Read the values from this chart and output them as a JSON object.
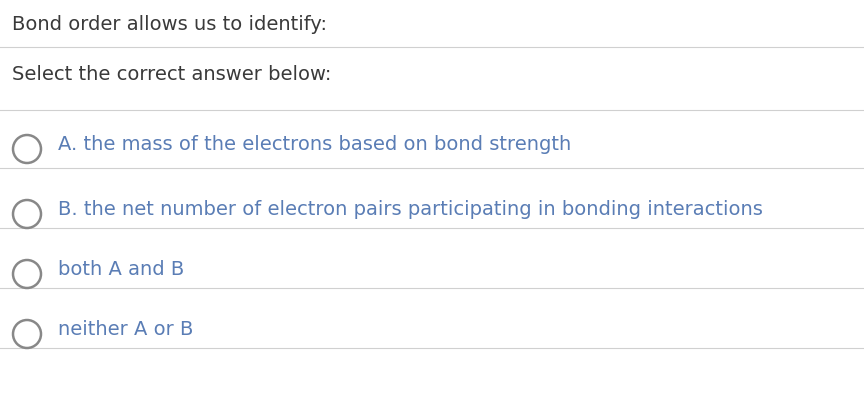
{
  "background_color": "#ffffff",
  "title_text": "Bond order allows us to identify:",
  "subtitle_text": "Select the correct answer below:",
  "options": [
    "A. the mass of the electrons based on bond strength",
    "B. the net number of electron pairs participating in bonding interactions",
    "both A and B",
    "neither A or B"
  ],
  "text_color": "#5a7db5",
  "title_text_color": "#3a3a3a",
  "subtitle_text_color": "#3a3a3a",
  "line_color": "#d0d0d0",
  "circle_color": "#888888",
  "title_fontsize": 14,
  "subtitle_fontsize": 14,
  "option_fontsize": 14
}
